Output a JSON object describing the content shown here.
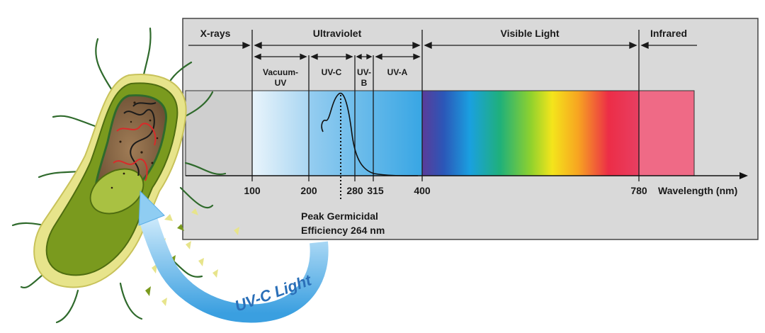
{
  "regions": {
    "xrays": "X-rays",
    "ultraviolet": "Ultraviolet",
    "visible": "Visible Light",
    "infrared": "Infrared"
  },
  "subregions": {
    "vacuum_uv_line1": "Vacuum-",
    "vacuum_uv_line2": "UV",
    "uvc": "UV-C",
    "uvb_line1": "UV-",
    "uvb_line2": "B",
    "uva": "UV-A"
  },
  "axis": {
    "ticks": [
      "100",
      "200",
      "280",
      "315",
      "400",
      "780"
    ],
    "label": "Wavelength (nm)"
  },
  "annotation": {
    "line1": "Peak Germicidal",
    "line2": "Efficiency 264 nm"
  },
  "arrow_label": "UV-C Light",
  "colors": {
    "panel": "#d9d9d9",
    "infrared": "#ef6a86",
    "uv_band": "#7cc4ee",
    "arrow": "#5aaee6",
    "bacterium_outer": "#e7e48b",
    "bacterium_body": "#7a9a1e",
    "interior": "#8a6a48",
    "flagella": "#2f6a2c"
  }
}
